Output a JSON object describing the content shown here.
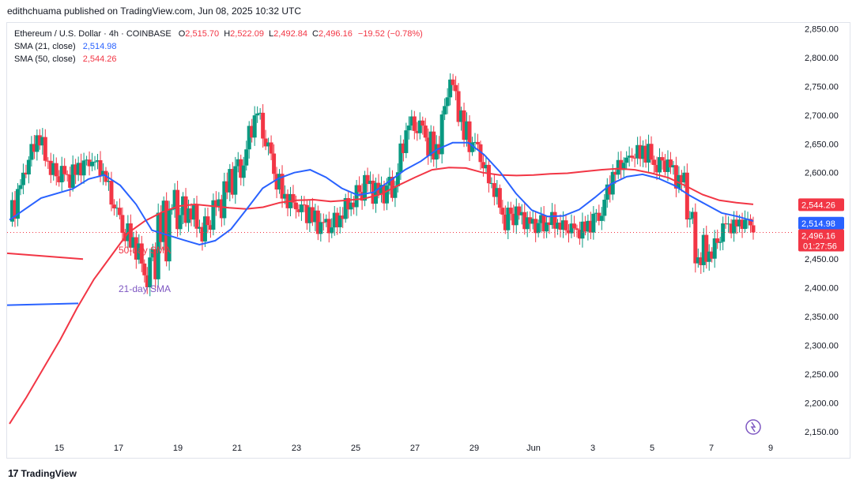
{
  "header": {
    "published": "edithchuama published on TradingView.com, Jun 08, 2025 10:32 UTC"
  },
  "legend": {
    "symbol": "Ethereum / U.S. Dollar · 4h · COINBASE",
    "o_label": "O",
    "o_value": "2,515.70",
    "h_label": "H",
    "h_value": "2,522.09",
    "l_label": "L",
    "l_value": "2,492.84",
    "c_label": "C",
    "c_value": "2,496.16",
    "change": "−19.52 (−0.78%)",
    "sma21_label": "SMA (21, close)",
    "sma21_value": "2,514.98",
    "sma50_label": "SMA (50, close)",
    "sma50_value": "2,544.26"
  },
  "footer": {
    "brand": "TradingView",
    "logo_icon": "tradingview-logo-icon"
  },
  "colors": {
    "up": "#089981",
    "down": "#f23645",
    "sma21": "#2962ff",
    "sma50": "#f23645",
    "text_purple": "#7e57c2"
  },
  "chart_data": {
    "type": "candlestick",
    "timeframe": "4h",
    "ylim": [
      2105,
      2860
    ],
    "y_ticks": [
      "2,150.00",
      "2,200.00",
      "2,250.00",
      "2,300.00",
      "2,350.00",
      "2,400.00",
      "2,450.00",
      "2,500.00",
      "2,550.00",
      "2,600.00",
      "2,650.00",
      "2,700.00",
      "2,750.00",
      "2,800.00",
      "2,850.00"
    ],
    "x_ticks": [
      "15",
      "17",
      "19",
      "21",
      "23",
      "25",
      "27",
      "29",
      "Jun",
      "3",
      "5",
      "7",
      "9"
    ],
    "price_labels": [
      {
        "name": "sma50",
        "text": "2,544.26"
      },
      {
        "name": "sma21",
        "text": "2,514.98"
      },
      {
        "name": "close",
        "text": "2,496.16",
        "sub": "01:27:56"
      }
    ],
    "annotations": [
      {
        "text": "50-day SMA",
        "color": "#f23645"
      },
      {
        "text": "21-day SMA",
        "color": "#7e57c2"
      }
    ],
    "annotation_lines": [
      {
        "color": "#f23645",
        "y1": 2460,
        "y2": 2450
      },
      {
        "color": "#2962ff",
        "y1": 2370,
        "y2": 2373
      }
    ],
    "anchor_points": [
      [
        2480,
        2550
      ],
      [
        2580,
        2600
      ],
      [
        2650,
        2690
      ],
      [
        2595,
        2620
      ],
      [
        2560,
        2610
      ],
      [
        2590,
        2620
      ],
      [
        2615,
        2640
      ],
      [
        2580,
        2600
      ],
      [
        2480,
        2530
      ],
      [
        2460,
        2500
      ],
      [
        2400,
        2450
      ],
      [
        2420,
        2560
      ],
      [
        2480,
        2570
      ],
      [
        2520,
        2560
      ],
      [
        2480,
        2520
      ],
      [
        2500,
        2560
      ],
      [
        2550,
        2610
      ],
      [
        2600,
        2660
      ],
      [
        2700,
        2720
      ],
      [
        2580,
        2640
      ],
      [
        2540,
        2570
      ],
      [
        2530,
        2560
      ],
      [
        2500,
        2540
      ],
      [
        2480,
        2520
      ],
      [
        2510,
        2540
      ],
      [
        2540,
        2580
      ],
      [
        2550,
        2600
      ],
      [
        2540,
        2580
      ],
      [
        2560,
        2620
      ],
      [
        2680,
        2700
      ],
      [
        2640,
        2690
      ],
      [
        2600,
        2660
      ],
      [
        2760,
        2780
      ],
      [
        2640,
        2700
      ],
      [
        2620,
        2650
      ],
      [
        2570,
        2590
      ],
      [
        2500,
        2550
      ],
      [
        2510,
        2540
      ],
      [
        2490,
        2520
      ],
      [
        2500,
        2540
      ],
      [
        2500,
        2520
      ],
      [
        2480,
        2510
      ],
      [
        2490,
        2520
      ],
      [
        2520,
        2560
      ],
      [
        2590,
        2620
      ],
      [
        2620,
        2630
      ],
      [
        2620,
        2660
      ],
      [
        2600,
        2640
      ],
      [
        2600,
        2620
      ],
      [
        2530,
        2600
      ],
      [
        2420,
        2500
      ],
      [
        2450,
        2480
      ],
      [
        2490,
        2520
      ],
      [
        2500,
        2520
      ],
      [
        2510,
        2530
      ]
    ],
    "close": 2496.16,
    "sma21": [
      [
        2480,
        2518
      ],
      [
        2520,
        2556
      ],
      [
        2560,
        2572
      ],
      [
        2580,
        2589
      ],
      [
        2600,
        2596
      ],
      [
        2620,
        2578
      ],
      [
        2640,
        2545
      ],
      [
        2660,
        2500
      ],
      [
        2700,
        2483
      ],
      [
        2720,
        2475
      ],
      [
        2740,
        2482
      ],
      [
        2760,
        2502
      ],
      [
        2780,
        2537
      ],
      [
        2800,
        2573
      ],
      [
        2820,
        2590
      ],
      [
        2840,
        2600
      ],
      [
        2860,
        2605
      ],
      [
        2880,
        2592
      ],
      [
        2900,
        2573
      ],
      [
        2920,
        2561
      ],
      [
        2940,
        2566
      ],
      [
        2960,
        2585
      ],
      [
        2980,
        2605
      ],
      [
        3000,
        2620
      ],
      [
        3020,
        2640
      ],
      [
        3040,
        2652
      ],
      [
        3060,
        2652
      ],
      [
        3080,
        2631
      ],
      [
        3100,
        2601
      ],
      [
        3120,
        2564
      ],
      [
        3140,
        2535
      ],
      [
        3160,
        2524
      ],
      [
        3180,
        2525
      ],
      [
        3200,
        2536
      ],
      [
        3220,
        2557
      ],
      [
        3240,
        2580
      ],
      [
        3260,
        2593
      ],
      [
        3280,
        2597
      ],
      [
        3300,
        2590
      ],
      [
        3320,
        2578
      ],
      [
        3340,
        2560
      ],
      [
        3360,
        2545
      ],
      [
        3380,
        2530
      ],
      [
        3400,
        2524
      ],
      [
        3420,
        2516
      ]
    ],
    "sma50": [
      [
        2480,
        2164
      ],
      [
        2500,
        2210
      ],
      [
        2520,
        2260
      ],
      [
        2540,
        2310
      ],
      [
        2560,
        2365
      ],
      [
        2580,
        2415
      ],
      [
        2600,
        2455
      ],
      [
        2620,
        2495
      ],
      [
        2640,
        2516
      ],
      [
        2660,
        2531
      ],
      [
        2680,
        2542
      ],
      [
        2700,
        2545
      ],
      [
        2720,
        2542
      ],
      [
        2740,
        2539
      ],
      [
        2760,
        2537
      ],
      [
        2780,
        2540
      ],
      [
        2800,
        2548
      ],
      [
        2820,
        2552
      ],
      [
        2840,
        2553
      ],
      [
        2860,
        2550
      ],
      [
        2880,
        2552
      ],
      [
        2900,
        2555
      ],
      [
        2920,
        2563
      ],
      [
        2940,
        2578
      ],
      [
        2960,
        2592
      ],
      [
        2980,
        2605
      ],
      [
        3000,
        2609
      ],
      [
        3020,
        2608
      ],
      [
        3040,
        2600
      ],
      [
        3060,
        2596
      ],
      [
        3080,
        2595
      ],
      [
        3100,
        2596
      ],
      [
        3120,
        2598
      ],
      [
        3140,
        2599
      ],
      [
        3160,
        2602
      ],
      [
        3180,
        2605
      ],
      [
        3200,
        2607
      ],
      [
        3220,
        2605
      ],
      [
        3240,
        2599
      ],
      [
        3260,
        2591
      ],
      [
        3280,
        2577
      ],
      [
        3300,
        2562
      ],
      [
        3320,
        2552
      ],
      [
        3340,
        2548
      ],
      [
        3360,
        2545
      ]
    ]
  }
}
